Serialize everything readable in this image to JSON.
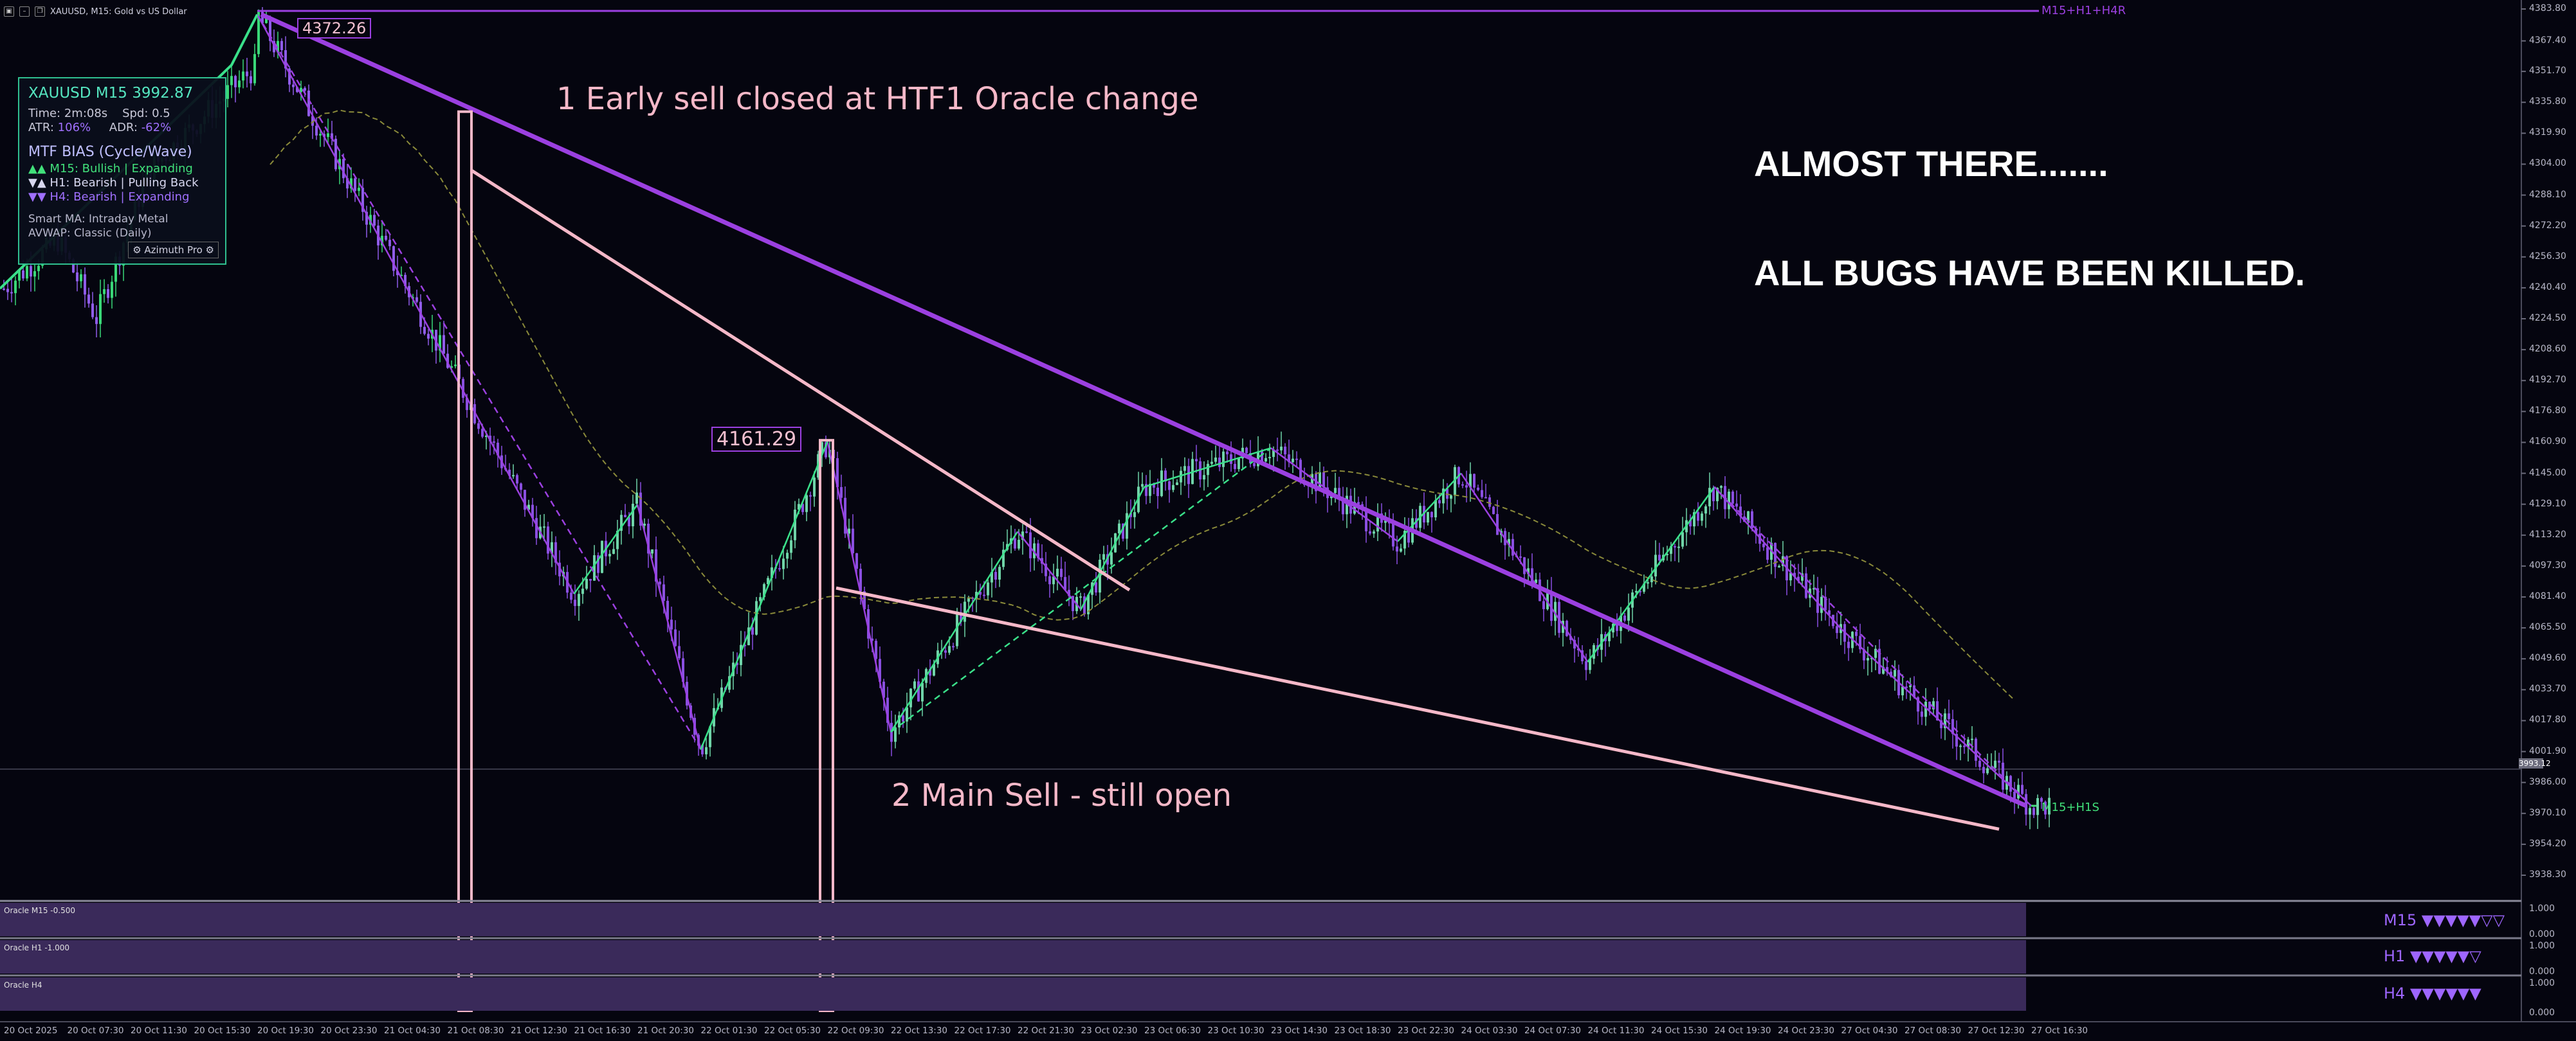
{
  "header": {
    "title": "XAUUSD, M15:  Gold vs US Dollar",
    "icons": [
      "window-menu-icon",
      "minimize-icon",
      "restore-icon",
      "close-icon"
    ]
  },
  "panel": {
    "symbol": "XAUUSD M15 3992.87",
    "time": "Time: 2m:08s",
    "spread": "Spd: 0.5",
    "atr_label": "ATR:",
    "atr_value": "106%",
    "adr_label": "ADR:",
    "adr_value": "-62%",
    "mtf_title": "MTF BIAS (Cycle/Wave)",
    "m15": "▲▲ M15: Bullish | Expanding",
    "h1": "▼▲ H1: Bearish | Pulling Back",
    "h4": "▼▼ H4: Bearish | Expanding",
    "smart_ma": "Smart MA: Intraday Metal",
    "avwap": "AVWAP: Classic (Daily)",
    "brand": "⚙ Azimuth Pro ⚙"
  },
  "annotations": {
    "early_sell": "1 Early sell closed at HTF1 Oracle change",
    "main_sell": "2 Main Sell - still open",
    "almost": "ALMOST THERE.......",
    "bugs": "ALL BUGS HAVE BEEN KILLED."
  },
  "chart_data": {
    "type": "candlestick",
    "symbol": "XAUUSD",
    "timeframe": "M15",
    "y_axis_ticks": [
      "4383.80",
      "4367.40",
      "4351.70",
      "4335.80",
      "4319.90",
      "4304.00",
      "4288.10",
      "4272.20",
      "4256.30",
      "4240.40",
      "4224.50",
      "4208.60",
      "4192.70",
      "4176.80",
      "4160.90",
      "4145.00",
      "4129.10",
      "4113.20",
      "4097.30",
      "4081.40",
      "4065.50",
      "4049.60",
      "4033.70",
      "4017.80",
      "4001.90",
      "3986.00",
      "3970.10",
      "3954.20",
      "3938.30"
    ],
    "x_axis_ticks": [
      "20 Oct 2025",
      "20 Oct 07:30",
      "20 Oct 11:30",
      "20 Oct 15:30",
      "20 Oct 19:30",
      "20 Oct 23:30",
      "21 Oct 04:30",
      "21 Oct 08:30",
      "21 Oct 12:30",
      "21 Oct 16:30",
      "21 Oct 20:30",
      "22 Oct 01:30",
      "22 Oct 05:30",
      "22 Oct 09:30",
      "22 Oct 13:30",
      "22 Oct 17:30",
      "22 Oct 21:30",
      "23 Oct 02:30",
      "23 Oct 06:30",
      "23 Oct 10:30",
      "23 Oct 14:30",
      "23 Oct 18:30",
      "23 Oct 22:30",
      "24 Oct 03:30",
      "24 Oct 07:30",
      "24 Oct 11:30",
      "24 Oct 15:30",
      "24 Oct 19:30",
      "24 Oct 23:30",
      "27 Oct 04:30",
      "27 Oct 08:30",
      "27 Oct 12:30",
      "27 Oct 16:30"
    ],
    "swing_points": [
      {
        "time": "20 Oct 19:30",
        "price": 4381
      },
      {
        "time": "21 Oct 16:30",
        "price": 4083
      },
      {
        "time": "21 Oct 20:30",
        "price": 4129
      },
      {
        "time": "22 Oct 01:30",
        "price": 4003
      },
      {
        "time": "22 Oct 09:30",
        "price": 4161.29
      },
      {
        "time": "22 Oct 13:30",
        "price": 4012
      },
      {
        "time": "22 Oct 21:30",
        "price": 4115
      },
      {
        "time": "23 Oct 02:30",
        "price": 4075
      },
      {
        "time": "23 Oct 06:30",
        "price": 4138
      },
      {
        "time": "23 Oct 14:30",
        "price": 4158
      },
      {
        "time": "23 Oct 22:30",
        "price": 4110
      },
      {
        "time": "24 Oct 03:30",
        "price": 4145
      },
      {
        "time": "24 Oct 11:30",
        "price": 4048
      },
      {
        "time": "24 Oct 19:30",
        "price": 4138
      },
      {
        "time": "27 Oct 04:30",
        "price": 4065
      },
      {
        "time": "27 Oct 16:30",
        "price": 3974
      }
    ],
    "current_price": 3992.87,
    "current_price_label": "3993.12",
    "peak_label": "4372.26",
    "retest_label": "4161.29",
    "levels": [
      {
        "name": "M15+H1+H4R",
        "price": 4383.8
      },
      {
        "name": "M15+H1S",
        "price": 3974
      }
    ],
    "oscillators": [
      {
        "name": "Oracle M15 -0.500",
        "label": "M15 ▼▼▼▼▼▽▽",
        "max": "1.000",
        "min": "0.000"
      },
      {
        "name": "Oracle H1 -1.000",
        "label": "H1 ▼▼▼▼▼▽",
        "max": "1.000",
        "min": "0.000"
      },
      {
        "name": "Oracle H4",
        "label": "H4 ▼▼▼▼▼▼",
        "max": "1.000",
        "min": "0.000"
      }
    ]
  }
}
